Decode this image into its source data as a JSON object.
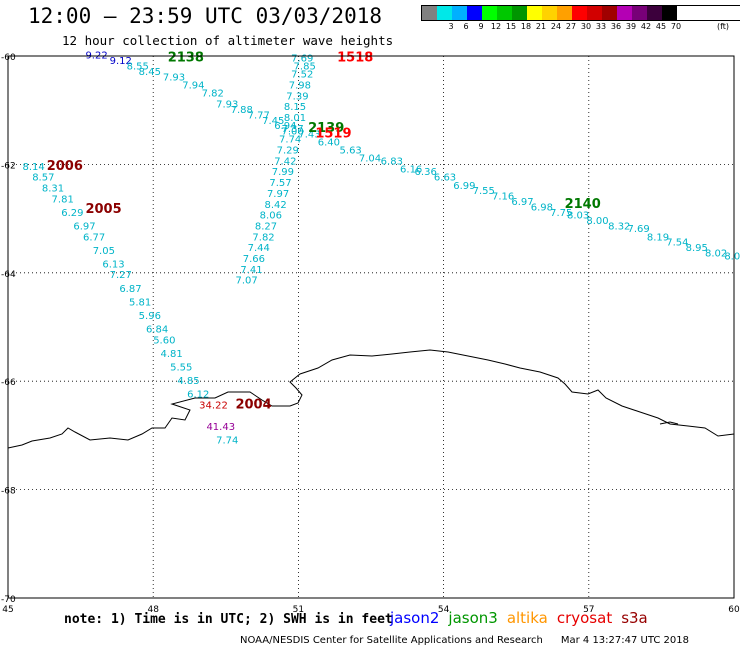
{
  "title": "12:00 – 23:59 UTC 03/03/2018",
  "subtitle": "12 hour collection of altimeter wave heights",
  "legend": {
    "unit": "(ft)",
    "items": [
      {
        "label": "",
        "color": "#808080"
      },
      {
        "label": "3",
        "color": "#00e8e8"
      },
      {
        "label": "6",
        "color": "#00b0ff"
      },
      {
        "label": "9",
        "color": "#0000ff"
      },
      {
        "label": "12",
        "color": "#00ff00"
      },
      {
        "label": "15",
        "color": "#00c800"
      },
      {
        "label": "18",
        "color": "#009600"
      },
      {
        "label": "21",
        "color": "#ffff00"
      },
      {
        "label": "24",
        "color": "#ffd200"
      },
      {
        "label": "27",
        "color": "#ffa000"
      },
      {
        "label": "30",
        "color": "#ff0000"
      },
      {
        "label": "33",
        "color": "#d20000"
      },
      {
        "label": "36",
        "color": "#a00000"
      },
      {
        "label": "39",
        "color": "#b400b4"
      },
      {
        "label": "42",
        "color": "#780078"
      },
      {
        "label": "45",
        "color": "#3c003c"
      },
      {
        "label": "70",
        "color": "#000000"
      }
    ]
  },
  "map": {
    "lon_range": [
      45,
      60
    ],
    "lat_range": [
      -70,
      -60
    ],
    "x_ticks": [
      "45",
      "48",
      "51",
      "54",
      "57",
      "60"
    ],
    "y_ticks": [
      "-60",
      "-62",
      "-64",
      "-66",
      "-68",
      "-70"
    ],
    "passes": [
      {
        "id": "2138",
        "color": "#007800",
        "at": [
          48.3,
          -60.1
        ]
      },
      {
        "id": "1518",
        "color": "#ff0000",
        "at": [
          51.8,
          -60.1
        ]
      },
      {
        "id": "2139",
        "color": "#007800",
        "at": [
          51.2,
          -61.4
        ]
      },
      {
        "id": "1519",
        "color": "#ff0000",
        "at": [
          51.35,
          -61.5
        ]
      },
      {
        "id": "2006",
        "color": "#8b0000",
        "at": [
          45.8,
          -62.1
        ]
      },
      {
        "id": "2005",
        "color": "#8b0000",
        "at": [
          46.6,
          -62.9
        ]
      },
      {
        "id": "2140",
        "color": "#007800",
        "at": [
          56.5,
          -62.8
        ]
      },
      {
        "id": "2004",
        "color": "#8b0000",
        "at": [
          49.7,
          -66.5
        ]
      }
    ],
    "tracks": [
      {
        "color": "#0000c8",
        "points": [
          [
            46.6,
            -60.05,
            "9.22"
          ],
          [
            47.1,
            -60.15,
            "9.12"
          ]
        ]
      },
      {
        "color": "#00b4c8",
        "points": [
          [
            47.45,
            -60.25,
            "8.55"
          ],
          [
            47.7,
            -60.35,
            "8.45"
          ],
          [
            48.2,
            -60.45,
            "7.93"
          ],
          [
            48.6,
            -60.6,
            "7.94"
          ],
          [
            49.0,
            -60.75,
            "7.82"
          ],
          [
            49.3,
            -60.95,
            "7.93"
          ],
          [
            49.6,
            -61.05,
            "7.88"
          ],
          [
            49.95,
            -61.15,
            "7.77"
          ],
          [
            50.25,
            -61.25,
            "7.45"
          ],
          [
            50.5,
            -61.35,
            "6.94"
          ],
          [
            50.65,
            -61.45,
            "7.00"
          ],
          [
            51.0,
            -61.5,
            "7.43"
          ],
          [
            51.4,
            -61.65,
            "6.40"
          ],
          [
            51.85,
            -61.8,
            "5.63"
          ],
          [
            52.25,
            -61.95,
            "7.04"
          ],
          [
            52.7,
            -62.0,
            "6.83"
          ],
          [
            53.1,
            -62.15,
            "6.16"
          ],
          [
            53.4,
            -62.2,
            "6.36"
          ],
          [
            53.8,
            -62.3,
            "6.63"
          ],
          [
            54.2,
            -62.45,
            "6.99"
          ],
          [
            54.6,
            -62.55,
            "7.55"
          ],
          [
            55.0,
            -62.65,
            "7.16"
          ],
          [
            55.4,
            -62.75,
            "6.97"
          ],
          [
            55.8,
            -62.85,
            "6.98"
          ],
          [
            56.2,
            -62.95,
            "7.75"
          ],
          [
            56.55,
            -63.0,
            "8.03"
          ],
          [
            56.95,
            -63.1,
            "8.00"
          ],
          [
            57.4,
            -63.2,
            "8.32"
          ],
          [
            57.8,
            -63.25,
            "7.69"
          ],
          [
            58.2,
            -63.4,
            "8.19"
          ],
          [
            58.6,
            -63.5,
            "7.54"
          ],
          [
            59.0,
            -63.6,
            "8.95"
          ],
          [
            59.4,
            -63.7,
            "8.02"
          ],
          [
            59.8,
            -63.75,
            "8.0"
          ]
        ]
      },
      {
        "color": "#00b4c8",
        "points": [
          [
            50.85,
            -60.1,
            "7.69"
          ],
          [
            50.9,
            -60.25,
            "7.85"
          ],
          [
            50.85,
            -60.4,
            "7.52"
          ],
          [
            50.8,
            -60.6,
            "7.98"
          ],
          [
            50.75,
            -60.8,
            "7.39"
          ],
          [
            50.7,
            -61.0,
            "8.15"
          ],
          [
            50.7,
            -61.2,
            "8.01"
          ],
          [
            50.65,
            -61.4,
            "7.37"
          ],
          [
            50.6,
            -61.6,
            "7.74"
          ],
          [
            50.55,
            -61.8,
            "7.29"
          ],
          [
            50.5,
            -62.0,
            "7.42"
          ],
          [
            50.45,
            -62.2,
            "7.99"
          ],
          [
            50.4,
            -62.4,
            "7.57"
          ],
          [
            50.35,
            -62.6,
            "7.97"
          ],
          [
            50.3,
            -62.8,
            "8.42"
          ],
          [
            50.2,
            -63.0,
            "8.06"
          ],
          [
            50.1,
            -63.2,
            "8.27"
          ],
          [
            50.05,
            -63.4,
            "7.82"
          ],
          [
            49.95,
            -63.6,
            "7.44"
          ],
          [
            49.85,
            -63.8,
            "7.66"
          ],
          [
            49.8,
            -64.0,
            "7.41"
          ],
          [
            49.7,
            -64.2,
            "7.07"
          ]
        ]
      },
      {
        "color": "#00b4c8",
        "points": [
          [
            45.3,
            -62.1,
            "8.14"
          ],
          [
            45.5,
            -62.3,
            "8.57"
          ],
          [
            45.7,
            -62.5,
            "8.31"
          ],
          [
            45.9,
            -62.7,
            "7.81"
          ],
          [
            46.1,
            -62.95,
            "6.29"
          ],
          [
            46.35,
            -63.2,
            "6.97"
          ],
          [
            46.55,
            -63.4,
            "6.77"
          ],
          [
            46.75,
            -63.65,
            "7.05"
          ],
          [
            46.95,
            -63.9,
            "6.13"
          ],
          [
            47.1,
            -64.1,
            "7.27"
          ],
          [
            47.3,
            -64.35,
            "6.87"
          ],
          [
            47.5,
            -64.6,
            "5.81"
          ],
          [
            47.7,
            -64.85,
            "5.96"
          ],
          [
            47.85,
            -65.1,
            "6.84"
          ],
          [
            48.0,
            -65.3,
            "5.60"
          ],
          [
            48.15,
            -65.55,
            "4.81"
          ],
          [
            48.35,
            -65.8,
            "5.55"
          ],
          [
            48.5,
            -66.05,
            "4.85"
          ],
          [
            48.7,
            -66.3,
            "6.12"
          ]
        ]
      },
      {
        "color": "#c80000",
        "points": [
          [
            48.95,
            -66.5,
            "34.22"
          ]
        ]
      },
      {
        "color": "#960096",
        "points": [
          [
            49.1,
            -66.9,
            "41.43"
          ]
        ]
      },
      {
        "color": "#00b4c8",
        "points": [
          [
            49.3,
            -67.15,
            "7.74"
          ]
        ]
      }
    ]
  },
  "note": "note: 1) Time is in UTC; 2) SWH is in feet",
  "satellites": [
    {
      "name": "jason2",
      "color": "#0000ff"
    },
    {
      "name": "jason3",
      "color": "#009600"
    },
    {
      "name": "altika",
      "color": "#ff9600"
    },
    {
      "name": "cryosat",
      "color": "#e60000"
    },
    {
      "name": "s3a",
      "color": "#960000"
    }
  ],
  "credit": "NOAA/NESDIS Center for Satellite Applications and Research",
  "timestamp": "Mar  4 13:27:47 UTC 2018"
}
